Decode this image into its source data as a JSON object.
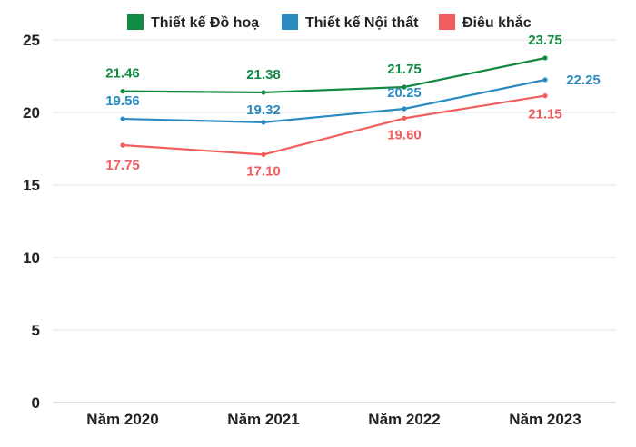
{
  "chart_data": {
    "type": "line",
    "title": "",
    "xlabel": "",
    "ylabel": "",
    "categories": [
      "Năm 2020",
      "Năm 2021",
      "Năm 2022",
      "Năm 2023"
    ],
    "ylim": [
      0,
      25
    ],
    "yticks": [
      "0",
      "5",
      "10",
      "15",
      "20",
      "25"
    ],
    "grid": true,
    "legend_position": "top",
    "series": [
      {
        "name": "Thiết kế Đồ hoạ",
        "color": "#138a43",
        "values": [
          21.46,
          21.38,
          21.75,
          23.75
        ],
        "labels": [
          "21.46",
          "21.38",
          "21.75",
          "23.75"
        ]
      },
      {
        "name": "Thiết kế Nội thất",
        "color": "#2a8bbf",
        "values": [
          19.56,
          19.32,
          20.25,
          22.25
        ],
        "labels": [
          "19.56",
          "19.32",
          "20.25",
          "22.25"
        ]
      },
      {
        "name": "Điêu khắc",
        "color": "#f25c5c",
        "values": [
          17.75,
          17.1,
          19.6,
          21.15
        ],
        "labels": [
          "17.75",
          "17.10",
          "19.60",
          "21.15"
        ]
      }
    ]
  }
}
